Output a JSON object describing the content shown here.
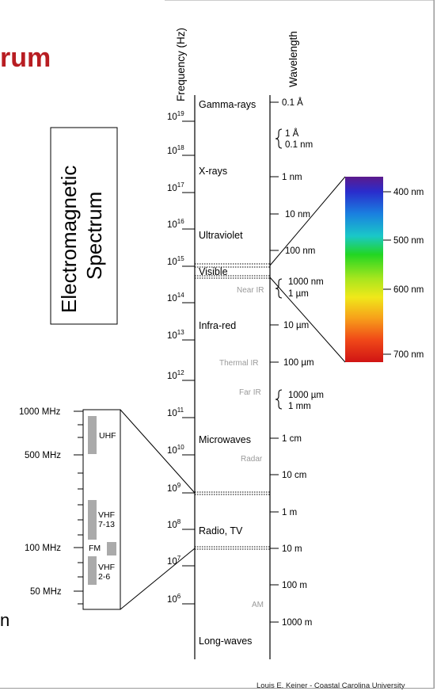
{
  "slide": {
    "title_fragment": "rum",
    "cut_letter": "n",
    "title_color": "#b81d22"
  },
  "diagram": {
    "box_title": [
      "Electromagnetic",
      "Spectrum"
    ],
    "frequency_axis_title": "Frequency (Hz)",
    "wavelength_axis_title": "Wavelength",
    "frequency_ticks": [
      {
        "base": "10",
        "exp": "19"
      },
      {
        "base": "10",
        "exp": "18"
      },
      {
        "base": "10",
        "exp": "17"
      },
      {
        "base": "10",
        "exp": "16"
      },
      {
        "base": "10",
        "exp": "15"
      },
      {
        "base": "10",
        "exp": "14"
      },
      {
        "base": "10",
        "exp": "13"
      },
      {
        "base": "10",
        "exp": "12"
      },
      {
        "base": "10",
        "exp": "11"
      },
      {
        "base": "10",
        "exp": "10"
      },
      {
        "base": "10",
        "exp": "9"
      },
      {
        "base": "10",
        "exp": "8"
      },
      {
        "base": "10",
        "exp": "7"
      },
      {
        "base": "10",
        "exp": "6"
      }
    ],
    "region_labels": [
      "Gamma-rays",
      "X-rays",
      "Ultraviolet",
      "Visible",
      "Infra-red",
      "Microwaves",
      "Radio, TV",
      "Long-waves"
    ],
    "sub_labels": [
      "Near IR",
      "Thermal IR",
      "Far IR",
      "Radar",
      "AM"
    ],
    "wavelength_labels": [
      "0.1 Å",
      "1 nm",
      "10 nm",
      "100 nm",
      "10 µm",
      "100 µm",
      "1 cm",
      "10 cm",
      "1 m",
      "10 m",
      "100 m",
      "1000 m"
    ],
    "wavelength_braces": [
      {
        "top": "1 Å",
        "bottom": "0.1 nm"
      },
      {
        "top": "1000 nm",
        "bottom": "1 µm"
      },
      {
        "top": "1000 µm",
        "bottom": "1 mm"
      }
    ],
    "visible_scale": [
      "400 nm",
      "500 nm",
      "600 nm",
      "700 nm"
    ],
    "radio_scale": [
      "1000 MHz",
      "500 MHz",
      "100 MHz",
      "50 MHz"
    ],
    "radio_bands": [
      "UHF",
      "VHF",
      "7-13",
      "FM",
      "VHF",
      "2-6"
    ],
    "credit": "Louis E. Keiner - Coastal Carolina University"
  },
  "colors": {
    "visible_gradient": [
      "#5c1a8c",
      "#2a2ccc",
      "#1a80e0",
      "#1ac8c8",
      "#22d622",
      "#a8e61e",
      "#f0e81a",
      "#f7a21a",
      "#f04818",
      "#d01414"
    ],
    "band_grey": "#aaaaaa"
  }
}
